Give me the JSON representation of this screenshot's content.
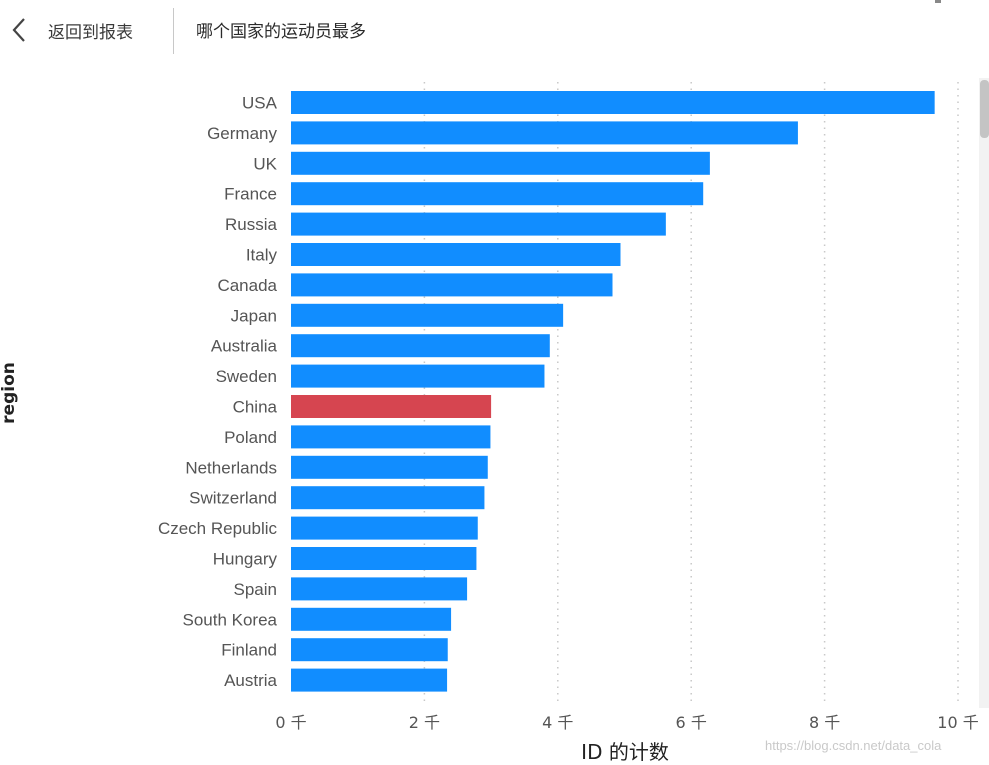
{
  "header": {
    "back_label": "返回到报表",
    "title": "哪个国家的运动员最多"
  },
  "chart_data": {
    "type": "bar",
    "orientation": "horizontal",
    "title": "哪个国家的运动员最多",
    "xlabel": "ID 的计数",
    "ylabel": "region",
    "categories": [
      "USA",
      "Germany",
      "UK",
      "France",
      "Russia",
      "Italy",
      "Canada",
      "Japan",
      "Australia",
      "Sweden",
      "China",
      "Poland",
      "Netherlands",
      "Switzerland",
      "Czech Republic",
      "Hungary",
      "Spain",
      "South Korea",
      "Finland",
      "Austria"
    ],
    "values": [
      9650,
      7600,
      6280,
      6180,
      5620,
      4940,
      4820,
      4080,
      3880,
      3800,
      3000,
      2990,
      2950,
      2900,
      2800,
      2780,
      2640,
      2400,
      2350,
      2340
    ],
    "highlight_category": "China",
    "colors": {
      "bar": "#118dff",
      "highlight": "#d64550",
      "grid": "#c8c8c8"
    },
    "xlim": [
      0,
      10000
    ],
    "xticks": [
      0,
      2000,
      4000,
      6000,
      8000,
      10000
    ],
    "xtick_labels": [
      "0 千",
      "2 千",
      "4 千",
      "6 千",
      "8 千",
      "10 千"
    ],
    "grid": "vertical dotted"
  },
  "watermark": "https://blog.csdn.net/data_cola"
}
